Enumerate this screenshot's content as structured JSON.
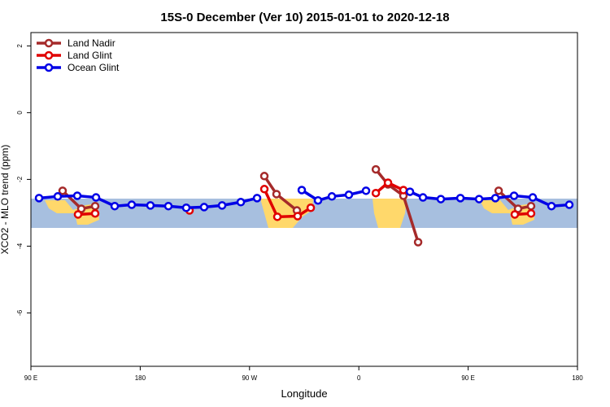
{
  "chart_data": {
    "type": "line",
    "title": "15S-0 December (Ver 10)   2015-01-01 to 2020-12-18",
    "x_label": "Longitude",
    "y_label": "XCO2 - MLO trend (ppm)",
    "xlim": [
      90,
      540
    ],
    "ylim": [
      -7.6,
      2.4
    ],
    "xticks": [
      {
        "value": 90,
        "label": "90 E"
      },
      {
        "value": 180,
        "label": "180"
      },
      {
        "value": 270,
        "label": "90 W"
      },
      {
        "value": 360,
        "label": "0"
      },
      {
        "value": 450,
        "label": "90 E"
      },
      {
        "value": 540,
        "label": "180"
      }
    ],
    "yticks": [
      2,
      0,
      -2,
      -4,
      -6
    ],
    "legend": "top-left",
    "series": [
      {
        "name": "Land Nadir",
        "color": "#a52a2a",
        "x": [
          116.1,
          131.5,
          142.9,
          null,
          282.2,
          292.2,
          309.0,
          null,
          374.0,
          384.0,
          396.7,
          408.8,
          null,
          475.1,
          491.1,
          501.8
        ],
        "values": [
          -2.34,
          -2.88,
          -2.8,
          null,
          -1.9,
          -2.44,
          -2.93,
          null,
          -1.7,
          -2.15,
          -2.49,
          -3.88,
          null,
          -2.34,
          -2.88,
          -2.8
        ]
      },
      {
        "name": "Land Glint",
        "color": "#e00000",
        "x": [
          128.8,
          142.9,
          null,
          220.6,
          null,
          282.2,
          292.9,
          309.6,
          320.4,
          null,
          374.0,
          384.0,
          396.7,
          null,
          488.4,
          501.8
        ],
        "values": [
          -3.05,
          -3.02,
          null,
          -2.93,
          null,
          -2.29,
          -3.12,
          -3.1,
          -2.85,
          null,
          -2.41,
          -2.1,
          -2.32,
          null,
          -3.05,
          -3.02
        ]
      },
      {
        "name": "Ocean Glint",
        "color": "#0000e6",
        "x": [
          96.7,
          112.1,
          128.2,
          143.6,
          159.0,
          173.0,
          188.4,
          203.2,
          217.9,
          232.6,
          247.4,
          262.8,
          276.2,
          null,
          313.0,
          326.4,
          337.8,
          351.8,
          365.9,
          null,
          402.1,
          412.8,
          427.5,
          443.6,
          459.0,
          472.4,
          487.8,
          503.2,
          518.6,
          533.3
        ],
        "values": [
          -2.56,
          -2.51,
          -2.49,
          -2.54,
          -2.8,
          -2.76,
          -2.78,
          -2.8,
          -2.85,
          -2.83,
          -2.78,
          -2.68,
          -2.56,
          null,
          -2.32,
          -2.63,
          -2.51,
          -2.46,
          -2.34,
          null,
          -2.37,
          -2.54,
          -2.59,
          -2.56,
          -2.59,
          -2.56,
          -2.49,
          -2.54,
          -2.8,
          -2.76
        ]
      }
    ]
  }
}
